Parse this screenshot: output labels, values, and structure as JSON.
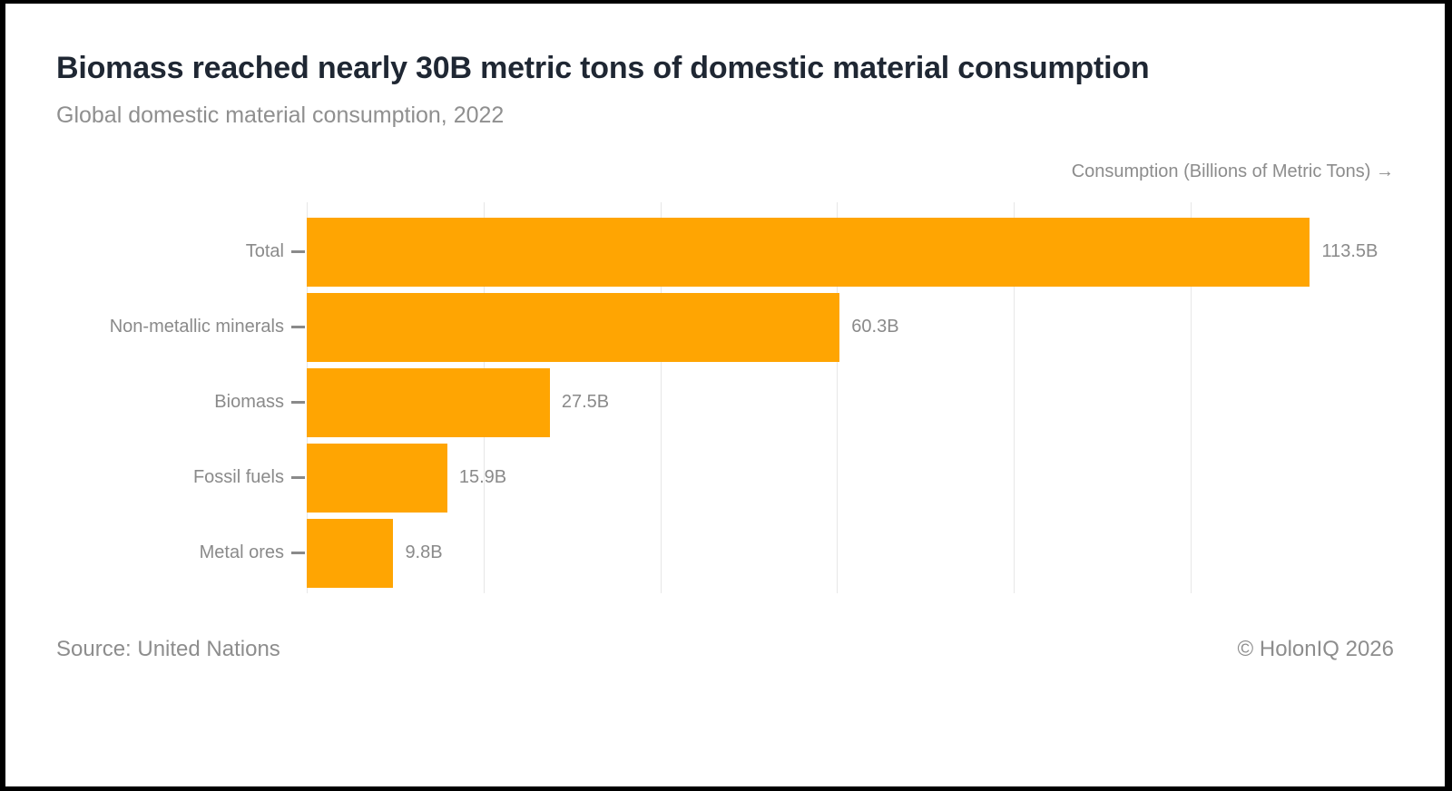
{
  "header": {
    "title": "Biomass reached nearly 30B metric tons of domestic material consumption",
    "subtitle": "Global domestic material consumption, 2022"
  },
  "axis": {
    "label": "Consumption (Billions of Metric Tons) →"
  },
  "chart_data": {
    "type": "bar",
    "orientation": "horizontal",
    "title": "Biomass reached nearly 30B metric tons of domestic material consumption",
    "subtitle": "Global domestic material consumption, 2022",
    "xlabel": "Consumption (Billions of Metric Tons)",
    "ylabel": "",
    "categories": [
      "Total",
      "Non-metallic minerals",
      "Biomass",
      "Fossil fuels",
      "Metal ores"
    ],
    "values": [
      113.5,
      60.3,
      27.5,
      15.9,
      9.8
    ],
    "value_labels": [
      "113.5B",
      "60.3B",
      "27.5B",
      "15.9B",
      "9.8B"
    ],
    "xlim": [
      0,
      123
    ],
    "gridlines_x": [
      0,
      20,
      40,
      60,
      80,
      100
    ],
    "grid": true,
    "legend": false,
    "bar_color": "#FFA502"
  },
  "footer": {
    "source": "Source: United Nations",
    "copyright": "© HolonIQ 2026"
  },
  "colors": {
    "bar": "#FFA502",
    "title_text": "#1F2733",
    "muted_text": "#8C8C8C",
    "gridline": "#E7E7E7"
  }
}
